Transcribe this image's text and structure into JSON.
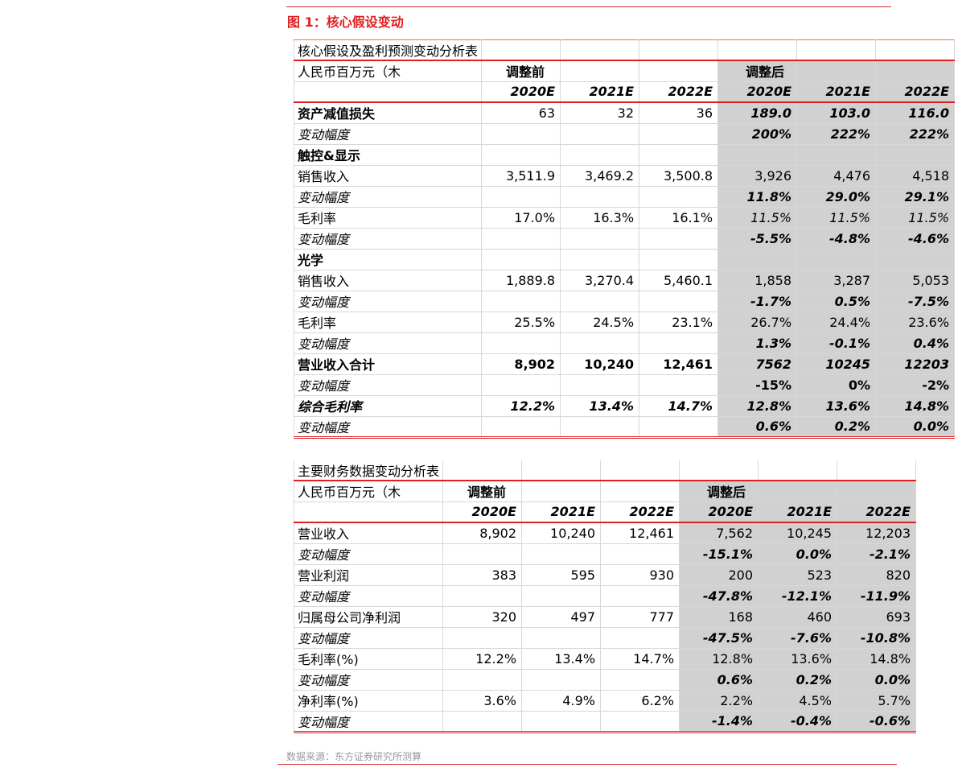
{
  "figure_title": "图 1：核心假设变动",
  "source_note": "数据来源：东方证券研究所测算",
  "colors": {
    "accent_red": "#e02020",
    "after_bg": "#d1d1d1"
  },
  "table1": {
    "title": "核心假设及盈利预测变动分析表",
    "unit_label": "人民币百万元（木",
    "before_label": "调整前",
    "after_label": "调整后",
    "years": [
      "2020E",
      "2021E",
      "2022E",
      "2020E",
      "2021E",
      "2022E"
    ],
    "rows": [
      {
        "label": "资产减值损失",
        "style": "bold",
        "values": [
          "63",
          "32",
          "36",
          "189.0",
          "103.0",
          "116.0"
        ],
        "after_style": "bi"
      },
      {
        "label": "变动幅度",
        "style": "italic",
        "values": [
          "",
          "",
          "",
          "200%",
          "222%",
          "222%"
        ],
        "after_style": "bi"
      },
      {
        "label": "触控&显示",
        "style": "bold",
        "values": [
          "",
          "",
          "",
          "",
          "",
          ""
        ],
        "after_style": ""
      },
      {
        "label": "销售收入",
        "style": "",
        "values": [
          "3,511.9",
          "3,469.2",
          "3,500.8",
          "3,926",
          "4,476",
          "4,518"
        ],
        "after_style": ""
      },
      {
        "label": "变动幅度",
        "style": "italic",
        "values": [
          "",
          "",
          "",
          "11.8%",
          "29.0%",
          "29.1%"
        ],
        "after_style": "bi"
      },
      {
        "label": "毛利率",
        "style": "",
        "values": [
          "17.0%",
          "16.3%",
          "16.1%",
          "11.5%",
          "11.5%",
          "11.5%"
        ],
        "after_style": "i"
      },
      {
        "label": "变动幅度",
        "style": "italic",
        "values": [
          "",
          "",
          "",
          "-5.5%",
          "-4.8%",
          "-4.6%"
        ],
        "after_style": "bi"
      },
      {
        "label": "光学",
        "style": "bold",
        "values": [
          "",
          "",
          "",
          "",
          "",
          ""
        ],
        "after_style": ""
      },
      {
        "label": "销售收入",
        "style": "",
        "values": [
          "1,889.8",
          "3,270.4",
          "5,460.1",
          "1,858",
          "3,287",
          "5,053"
        ],
        "after_style": ""
      },
      {
        "label": "变动幅度",
        "style": "italic",
        "values": [
          "",
          "",
          "",
          "-1.7%",
          "0.5%",
          "-7.5%"
        ],
        "after_style": "bi"
      },
      {
        "label": "毛利率",
        "style": "",
        "values": [
          "25.5%",
          "24.5%",
          "23.1%",
          "26.7%",
          "24.4%",
          "23.6%"
        ],
        "after_style": ""
      },
      {
        "label": "变动幅度",
        "style": "italic",
        "values": [
          "",
          "",
          "",
          "1.3%",
          "-0.1%",
          "0.4%"
        ],
        "after_style": "bi"
      },
      {
        "label": "营业收入合计",
        "style": "bold",
        "values": [
          "8,902",
          "10,240",
          "12,461",
          "7562",
          "10245",
          "12203"
        ],
        "after_style": "bi",
        "before_style": "b"
      },
      {
        "label": "变动幅度",
        "style": "italic",
        "values": [
          "",
          "",
          "",
          "-15%",
          "0%",
          "-2%"
        ],
        "after_style": "b"
      },
      {
        "label": "综合毛利率",
        "style": "bi",
        "values": [
          "12.2%",
          "13.4%",
          "14.7%",
          "12.8%",
          "13.6%",
          "14.8%"
        ],
        "after_style": "bi",
        "before_style": "bi"
      },
      {
        "label": "变动幅度",
        "style": "italic",
        "values": [
          "",
          "",
          "",
          "0.6%",
          "0.2%",
          "0.0%"
        ],
        "after_style": "bi"
      }
    ]
  },
  "table2": {
    "title": "主要财务数据变动分析表",
    "unit_label": "人民币百万元（木",
    "before_label": "调整前",
    "after_label": "调整后",
    "years": [
      "2020E",
      "2021E",
      "2022E",
      "2020E",
      "2021E",
      "2022E"
    ],
    "rows": [
      {
        "label": "营业收入",
        "style": "",
        "values": [
          "8,902",
          "10,240",
          "12,461",
          "7,562",
          "10,245",
          "12,203"
        ],
        "after_style": ""
      },
      {
        "label": "变动幅度",
        "style": "italic",
        "values": [
          "",
          "",
          "",
          "-15.1%",
          "0.0%",
          "-2.1%"
        ],
        "after_style": "bi"
      },
      {
        "label": "营业利润",
        "style": "",
        "values": [
          "383",
          "595",
          "930",
          "200",
          "523",
          "820"
        ],
        "after_style": ""
      },
      {
        "label": "变动幅度",
        "style": "italic",
        "values": [
          "",
          "",
          "",
          "-47.8%",
          "-12.1%",
          "-11.9%"
        ],
        "after_style": "bi"
      },
      {
        "label": "归属母公司净利润",
        "style": "",
        "values": [
          "320",
          "497",
          "777",
          "168",
          "460",
          "693"
        ],
        "after_style": ""
      },
      {
        "label": "变动幅度",
        "style": "italic",
        "values": [
          "",
          "",
          "",
          "-47.5%",
          "-7.6%",
          "-10.8%"
        ],
        "after_style": "bi"
      },
      {
        "label": "毛利率(%)",
        "style": "",
        "values": [
          "12.2%",
          "13.4%",
          "14.7%",
          "12.8%",
          "13.6%",
          "14.8%"
        ],
        "after_style": ""
      },
      {
        "label": "变动幅度",
        "style": "italic",
        "values": [
          "",
          "",
          "",
          "0.6%",
          "0.2%",
          "0.0%"
        ],
        "after_style": "bi"
      },
      {
        "label": "净利率(%)",
        "style": "",
        "values": [
          "3.6%",
          "4.9%",
          "6.2%",
          "2.2%",
          "4.5%",
          "5.7%"
        ],
        "after_style": ""
      },
      {
        "label": "变动幅度",
        "style": "italic",
        "values": [
          "",
          "",
          "",
          "-1.4%",
          "-0.4%",
          "-0.6%"
        ],
        "after_style": "bi"
      }
    ]
  }
}
